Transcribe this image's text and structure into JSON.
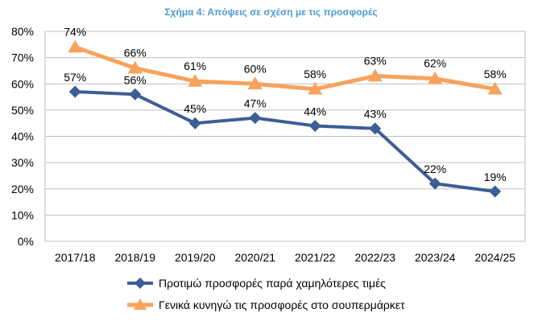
{
  "chart_data": {
    "type": "line",
    "title": "Σχήμα 4: Απόψεις σε σχέση με τις προσφορές",
    "xlabel": "",
    "ylabel": "",
    "categories": [
      "2017/18",
      "2018/19",
      "2019/20",
      "2020/21",
      "2021/22",
      "2022/23",
      "2023/24",
      "2024/25"
    ],
    "ylim": [
      0,
      80
    ],
    "yticks": [
      "0%",
      "10%",
      "20%",
      "30%",
      "40%",
      "50%",
      "60%",
      "70%",
      "80%"
    ],
    "grid": "horizontal",
    "legend_position": "bottom",
    "series": [
      {
        "name": "Προτιμώ προσφορές παρά χαμηλότερες τιμές",
        "values": [
          57,
          56,
          45,
          47,
          44,
          43,
          22,
          19
        ],
        "labels": [
          "57%",
          "56%",
          "45%",
          "47%",
          "44%",
          "43%",
          "22%",
          "19%"
        ],
        "color": "#3c5e96",
        "marker": "diamond"
      },
      {
        "name": "Γενικά κυνηγώ τις προσφορές στο σουπερμάρκετ",
        "values": [
          74,
          66,
          61,
          60,
          58,
          63,
          62,
          58
        ],
        "labels": [
          "74%",
          "66%",
          "61%",
          "60%",
          "58%",
          "63%",
          "62%",
          "58%"
        ],
        "color": "#f7a35c",
        "marker": "triangle"
      }
    ]
  }
}
